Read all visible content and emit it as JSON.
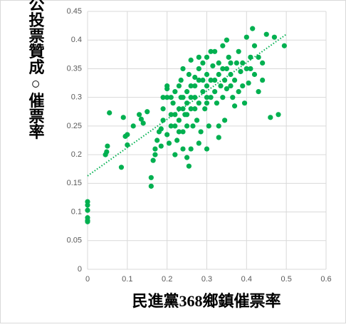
{
  "chart_data": {
    "type": "scatter",
    "x_label": "民進黨368鄉鎮催票率",
    "y_label": "公投票贊成○催票率",
    "color": "#00b050",
    "grid": true,
    "xlim": [
      0,
      0.6
    ],
    "xticks": [
      0,
      0.1,
      0.2,
      0.3,
      0.4,
      0.5,
      0.6
    ],
    "ylim": [
      0,
      0.45
    ],
    "yticks": [
      0,
      0.05,
      0.1,
      0.15,
      0.2,
      0.25,
      0.3,
      0.35,
      0.4,
      0.45
    ],
    "x": [
      0,
      0,
      0,
      0,
      0,
      0,
      0.045,
      0.048,
      0.05,
      0.055,
      0.085,
      0.09,
      0.095,
      0.1,
      0.1,
      0.115,
      0.13,
      0.135,
      0.14,
      0.15,
      0.16,
      0.16,
      0.165,
      0.17,
      0.17,
      0.175,
      0.18,
      0.185,
      0.19,
      0.19,
      0.2,
      0.2,
      0.2,
      0.205,
      0.21,
      0.21,
      0.215,
      0.22,
      0.22,
      0.225,
      0.23,
      0.23,
      0.235,
      0.235,
      0.24,
      0.24,
      0.245,
      0.25,
      0.25,
      0.25,
      0.255,
      0.255,
      0.26,
      0.26,
      0.265,
      0.27,
      0.27,
      0.275,
      0.28,
      0.28,
      0.28,
      0.285,
      0.29,
      0.29,
      0.295,
      0.3,
      0.3,
      0.3,
      0.305,
      0.31,
      0.31,
      0.315,
      0.32,
      0.32,
      0.325,
      0.33,
      0.33,
      0.335,
      0.34,
      0.34,
      0.345,
      0.35,
      0.35,
      0.355,
      0.36,
      0.36,
      0.365,
      0.37,
      0.375,
      0.38,
      0.385,
      0.39,
      0.395,
      0.4,
      0.4,
      0.405,
      0.41,
      0.415,
      0.42,
      0.43,
      0.44,
      0.45,
      0.46,
      0.47,
      0.48,
      0.495,
      0.33,
      0.33,
      0.3,
      0.28,
      0.24,
      0.26,
      0.2,
      0.185,
      0.3,
      0.26,
      0.27,
      0.25,
      0.22,
      0.23,
      0.21,
      0.19,
      0.28,
      0.31,
      0.35,
      0.38,
      0.42,
      0.345,
      0.37,
      0.24,
      0.25,
      0.29,
      0.3,
      0.32,
      0.34,
      0.26,
      0.27,
      0.24,
      0.23,
      0.22,
      0.36,
      0.39,
      0.43,
      0.44,
      0.41
    ],
    "y": [
      0.118,
      0.112,
      0.103,
      0.09,
      0.085,
      0.083,
      0.2,
      0.205,
      0.215,
      0.273,
      0.178,
      0.265,
      0.232,
      0.217,
      0.235,
      0.25,
      0.27,
      0.262,
      0.255,
      0.275,
      0.16,
      0.145,
      0.19,
      0.21,
      0.2,
      0.225,
      0.24,
      0.245,
      0.26,
      0.28,
      0.3,
      0.315,
      0.32,
      0.22,
      0.25,
      0.27,
      0.29,
      0.31,
      0.2,
      0.225,
      0.26,
      0.28,
      0.3,
      0.33,
      0.35,
      0.24,
      0.27,
      0.29,
      0.31,
      0.195,
      0.18,
      0.34,
      0.365,
      0.28,
      0.25,
      0.3,
      0.32,
      0.26,
      0.33,
      0.29,
      0.35,
      0.24,
      0.31,
      0.36,
      0.28,
      0.32,
      0.34,
      0.37,
      0.25,
      0.3,
      0.33,
      0.355,
      0.31,
      0.38,
      0.29,
      0.34,
      0.36,
      0.32,
      0.3,
      0.39,
      0.33,
      0.35,
      0.315,
      0.37,
      0.32,
      0.34,
      0.3,
      0.33,
      0.36,
      0.31,
      0.345,
      0.32,
      0.29,
      0.35,
      0.405,
      0.325,
      0.37,
      0.42,
      0.34,
      0.31,
      0.36,
      0.41,
      0.265,
      0.405,
      0.27,
      0.39,
      0.25,
      0.23,
      0.21,
      0.22,
      0.21,
      0.21,
      0.235,
      0.215,
      0.29,
      0.3,
      0.335,
      0.25,
      0.27,
      0.32,
      0.3,
      0.3,
      0.37,
      0.38,
      0.4,
      0.38,
      0.39,
      0.26,
      0.285,
      0.3,
      0.27,
      0.33,
      0.3,
      0.33,
      0.35,
      0.32,
      0.28,
      0.28,
      0.24,
      0.25,
      0.36,
      0.36,
      0.37,
      0.33,
      0.35
    ],
    "trendline": {
      "x": [
        0,
        0.5
      ],
      "y": [
        0.163,
        0.41
      ]
    }
  }
}
